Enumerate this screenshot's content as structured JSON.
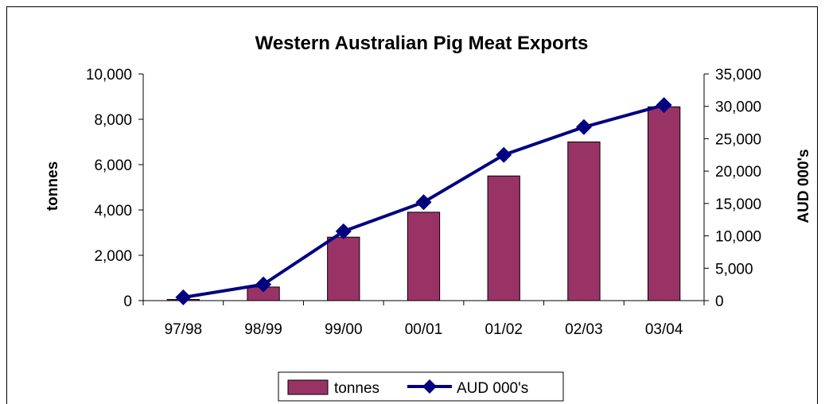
{
  "chart_data": {
    "type": "bar",
    "title": "Western Australian Pig Meat Exports",
    "categories": [
      "97/98",
      "98/99",
      "99/00",
      "00/01",
      "01/02",
      "02/03",
      "03/04"
    ],
    "series": [
      {
        "name": "tonnes",
        "type": "bar",
        "axis": "left",
        "color": "#993366",
        "values": [
          50,
          600,
          2800,
          3900,
          5500,
          7000,
          8550
        ]
      },
      {
        "name": "AUD 000's",
        "type": "line",
        "axis": "right",
        "color": "#000080",
        "marker": "diamond",
        "values": [
          500,
          2500,
          10700,
          15200,
          22500,
          26800,
          30200
        ]
      }
    ],
    "ylabel_left": "tonnes",
    "ylabel_right": "AUD 000's",
    "ylim_left": [
      0,
      10000
    ],
    "ylim_right": [
      0,
      35000
    ],
    "yticks_left": [
      "0",
      "2,000",
      "4,000",
      "6,000",
      "8,000",
      "10,000"
    ],
    "yticks_right": [
      "0",
      "5,000",
      "10,000",
      "15,000",
      "20,000",
      "25,000",
      "30,000",
      "35,000"
    ],
    "grid": false,
    "legend": "bottom"
  }
}
